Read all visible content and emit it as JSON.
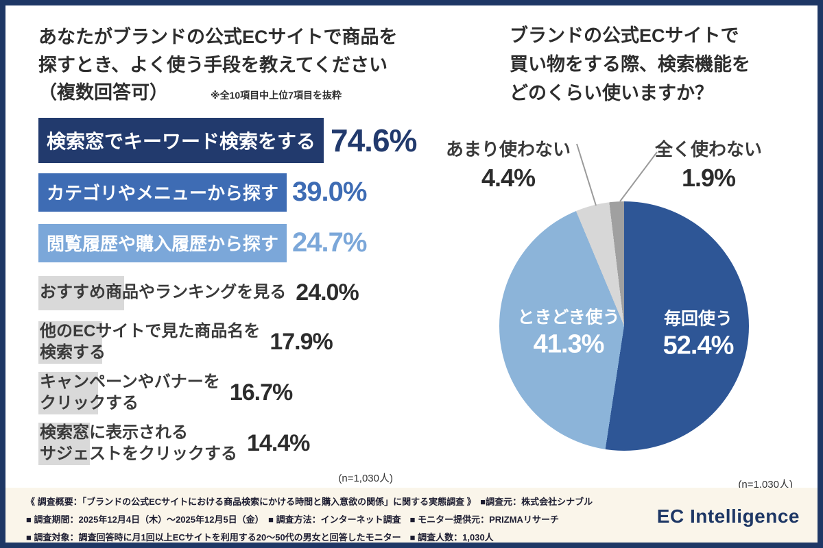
{
  "left_chart": {
    "title_lines": [
      "あなたがブランドの公式ECサイトで商品を",
      "探すとき、よく使う手段を教えてください",
      "（複数回答可）"
    ],
    "note": "※全10項目中上位7項目を抜粋",
    "rows": [
      {
        "label": "検索窓でキーワード検索をする",
        "pct": "74.6%",
        "value": 74.6,
        "style": "navy"
      },
      {
        "label": "カテゴリやメニューから探す",
        "pct": "39.0%",
        "value": 39.0,
        "style": "blue"
      },
      {
        "label": "閲覧履歴や購入履歴から探す",
        "pct": "24.7%",
        "value": 24.7,
        "style": "lightblue"
      },
      {
        "label": "おすすめ商品やランキングを見る",
        "pct": "24.0%",
        "value": 24.0,
        "style": "gray"
      },
      {
        "label": "他のECサイトで見た商品名を",
        "label2": "検索する",
        "pct": "17.9%",
        "value": 17.9,
        "style": "gray"
      },
      {
        "label": "キャンペーンやバナーを",
        "label2": "クリックする",
        "pct": "16.7%",
        "value": 16.7,
        "style": "gray"
      },
      {
        "label": "検索窓に表示される",
        "label2": "サジェストをクリックする",
        "pct": "14.4%",
        "value": 14.4,
        "style": "gray"
      }
    ],
    "n_label": "(n=1,030人)"
  },
  "pie_chart": {
    "title_lines": [
      "ブランドの公式ECサイトで",
      "買い物をする際、検索機能を",
      "どのくらい使いますか？"
    ],
    "slices": [
      {
        "label": "毎回使う",
        "pct": "52.4%",
        "value": 52.4,
        "color": "#2e5696",
        "placement": "inside"
      },
      {
        "label": "ときどき使う",
        "pct": "41.3%",
        "value": 41.3,
        "color": "#8cb4d9",
        "placement": "inside"
      },
      {
        "label": "あまり使わない",
        "pct": "4.4%",
        "value": 4.4,
        "color": "#d7d7d7",
        "placement": "outside-left"
      },
      {
        "label": "全く使わない",
        "pct": "1.9%",
        "value": 1.9,
        "color": "#a0a0a0",
        "placement": "outside-right"
      }
    ],
    "n_label": "(n=1,030人)"
  },
  "footer": {
    "lines": [
      "《 調査概要：「ブランドの公式ECサイトにおける商品検索にかける時間と購入意欲の関係」に関する実態調査 》　■調査元：株式会社シナブル",
      "■ 調査期間：2025年12月4日（木）〜2025年12月5日（金）　■ 調査方法：インターネット調査　■ モニター提供元：PRIZMAリサーチ",
      "■ 調査対象：調査回答時に月1回以上ECサイトを利用する20〜50代の男女と回答したモニター　■ 調査人数：1,030人"
    ],
    "logo": "EC Intelligence"
  },
  "colors": {
    "border": "#1e3765",
    "bar_navy": "#223a6d",
    "bar_blue": "#3e6cb4",
    "bar_lightblue": "#7ba7d9",
    "bar_gray": "#d9d9d9",
    "footer_bg": "#faf5ea"
  },
  "chart_data": [
    {
      "type": "bar",
      "title": "あなたがブランドの公式ECサイトで商品を探すとき、よく使う手段を教えてください（複数回答可）",
      "note": "※全10項目中上位7項目を抜粋",
      "categories": [
        "検索窓でキーワード検索をする",
        "カテゴリやメニューから探す",
        "閲覧履歴や購入履歴から探す",
        "おすすめ商品やランキングを見る",
        "他のECサイトで見た商品名を検索する",
        "キャンペーンやバナーをクリックする",
        "検索窓に表示されるサジェストをクリックする"
      ],
      "values": [
        74.6,
        39.0,
        24.7,
        24.0,
        17.9,
        16.7,
        14.4
      ],
      "unit": "%",
      "orientation": "horizontal",
      "n": "(n=1,030人)"
    },
    {
      "type": "pie",
      "title": "ブランドの公式ECサイトで買い物をする際、検索機能をどのくらい使いますか？",
      "labels": [
        "毎回使う",
        "ときどき使う",
        "あまり使わない",
        "全く使わない"
      ],
      "values": [
        52.4,
        41.3,
        4.4,
        1.9
      ],
      "colors": [
        "#2e5696",
        "#8cb4d9",
        "#d7d7d7",
        "#a0a0a0"
      ],
      "start_angle_deg": 0,
      "direction": "clockwise",
      "n": "(n=1,030人)"
    }
  ]
}
